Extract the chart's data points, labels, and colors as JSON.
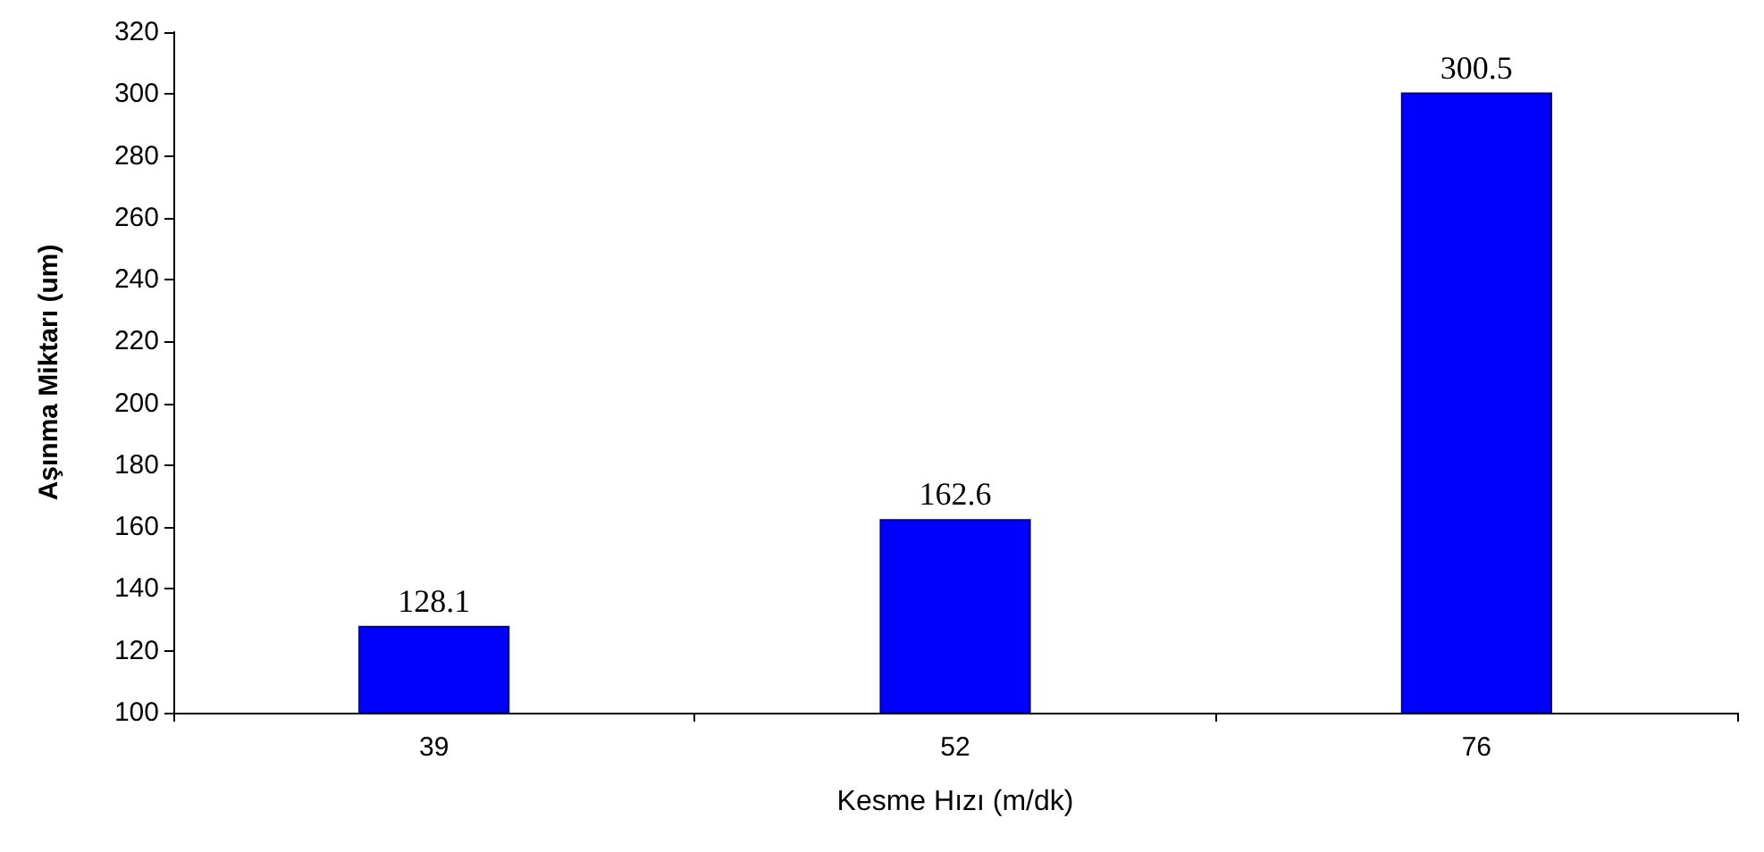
{
  "chart_data": {
    "type": "bar",
    "xlabel": "Kesme Hızı (m/dk)",
    "ylabel": "Aşınma Miktarı (um)",
    "categories": [
      "39",
      "52",
      "76"
    ],
    "values": [
      128.1,
      162.6,
      300.5
    ],
    "color": "#0000ff",
    "ylim": [
      100,
      320
    ],
    "yticks": [
      100,
      120,
      140,
      160,
      180,
      200,
      220,
      240,
      260,
      280,
      300,
      320
    ],
    "data_labels": true
  }
}
